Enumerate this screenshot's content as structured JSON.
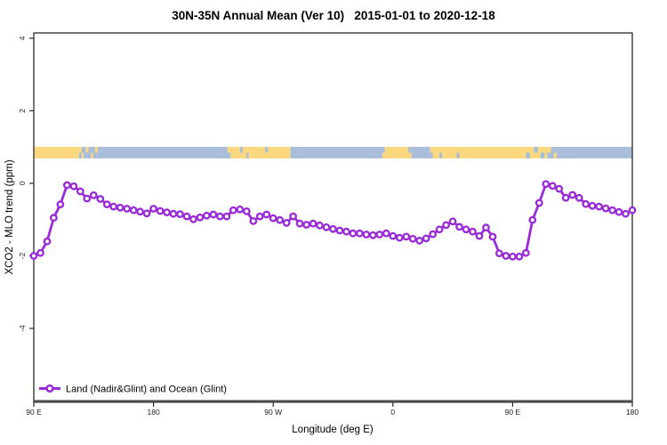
{
  "title": "30N-35N Annual Mean (Ver 10)   2015-01-01 to 2020-12-18",
  "x_axis": {
    "label": "Longitude (deg E)",
    "tick_labels": [
      "90 E",
      "180",
      "90 W",
      "0",
      "90 E",
      "180"
    ],
    "tick_positions_deg": [
      0,
      90,
      180,
      270,
      360,
      450
    ]
  },
  "y_axis": {
    "label": "XCO2 - MLO trend (ppm)",
    "tick_labels": [
      "4",
      "2",
      "0",
      "-2",
      "-4"
    ],
    "tick_values": [
      4,
      2,
      0,
      -2,
      -4
    ]
  },
  "legend": {
    "label": "Land (Nadir&Glint) and Ocean (Glint)"
  },
  "colors": {
    "series": "#9A2CD8",
    "marker_fill": "#ffffff",
    "land": "#FBD77E",
    "ocean": "#A9BEDB",
    "axis": "#2b2b2b",
    "axis_thick": "#4d4d4d",
    "tick_text": "#222222"
  },
  "chart_data": {
    "type": "line",
    "title": "30N-35N Annual Mean (Ver 10)   2015-01-01 to 2020-12-18",
    "xlabel": "Longitude (deg E)",
    "ylabel": "XCO2 - MLO trend (ppm)",
    "x_axis_span_deg": 450,
    "x_start_longitude": "90 E (axis wraps east through 180, 90 W, 0, 90 E to 180)",
    "x_step_deg": 5,
    "x_start_deg": 0,
    "ylim_visible": [
      -6.0,
      4.15
    ],
    "y_ticks": [
      4,
      2,
      0,
      -2,
      -4
    ],
    "grid": false,
    "legend_position": "bottom-left inside plot",
    "series": [
      {
        "name": "Land (Nadir&Glint) and Ocean (Glint)",
        "marker": "open-circle",
        "color": "#9A2CD8",
        "values": [
          -2.0,
          -1.92,
          -1.6,
          -0.95,
          -0.58,
          -0.05,
          -0.08,
          -0.22,
          -0.42,
          -0.33,
          -0.43,
          -0.58,
          -0.64,
          -0.67,
          -0.7,
          -0.74,
          -0.78,
          -0.83,
          -0.7,
          -0.76,
          -0.8,
          -0.84,
          -0.85,
          -0.91,
          -0.99,
          -0.94,
          -0.89,
          -0.86,
          -0.91,
          -0.91,
          -0.74,
          -0.72,
          -0.77,
          -1.04,
          -0.91,
          -0.86,
          -0.96,
          -1.01,
          -1.09,
          -0.91,
          -1.11,
          -1.14,
          -1.11,
          -1.16,
          -1.21,
          -1.26,
          -1.3,
          -1.33,
          -1.38,
          -1.38,
          -1.41,
          -1.43,
          -1.41,
          -1.38,
          -1.45,
          -1.5,
          -1.47,
          -1.53,
          -1.58,
          -1.52,
          -1.4,
          -1.27,
          -1.15,
          -1.05,
          -1.2,
          -1.27,
          -1.33,
          -1.45,
          -1.22,
          -1.47,
          -1.93,
          -2.0,
          -2.02,
          -2.02,
          -1.92,
          -1.01,
          -0.54,
          -0.02,
          -0.07,
          -0.15,
          -0.4,
          -0.32,
          -0.4,
          -0.57,
          -0.62,
          -0.64,
          -0.69,
          -0.74,
          -0.79,
          -0.84,
          -0.74
        ]
      }
    ],
    "land_ocean_strip": {
      "center_value_ppm": 0.85,
      "height_ppm": 0.32,
      "segments": [
        {
          "start_deg": 0,
          "end_deg": 34,
          "type": "land"
        },
        {
          "start_deg": 34,
          "end_deg": 148,
          "type": "ocean"
        },
        {
          "start_deg": 148,
          "end_deg": 193,
          "type": "land"
        },
        {
          "start_deg": 193,
          "end_deg": 264,
          "type": "ocean"
        },
        {
          "start_deg": 264,
          "end_deg": 284,
          "type": "land"
        },
        {
          "start_deg": 284,
          "end_deg": 298,
          "type": "ocean"
        },
        {
          "start_deg": 298,
          "end_deg": 386,
          "type": "land"
        },
        {
          "start_deg": 386,
          "end_deg": 450,
          "type": "ocean"
        }
      ],
      "coastline_jags": [
        {
          "d0": 34,
          "d1": 36,
          "type": "land",
          "half": "top"
        },
        {
          "d0": 36,
          "d1": 37.5,
          "type": "land",
          "half": "bottom"
        },
        {
          "d0": 39,
          "d1": 41,
          "type": "land",
          "half": "top"
        },
        {
          "d0": 43,
          "d1": 44.5,
          "type": "land",
          "half": "bottom"
        },
        {
          "d0": 46,
          "d1": 48,
          "type": "land",
          "half": "top"
        },
        {
          "d0": 145.5,
          "d1": 148,
          "type": "land",
          "half": "top"
        },
        {
          "d0": 155,
          "d1": 157,
          "type": "ocean",
          "half": "top"
        },
        {
          "d0": 160,
          "d1": 161.5,
          "type": "ocean",
          "half": "bottom"
        },
        {
          "d0": 174,
          "d1": 176,
          "type": "ocean",
          "half": "top"
        },
        {
          "d0": 262,
          "d1": 264,
          "type": "land",
          "half": "bottom"
        },
        {
          "d0": 281.5,
          "d1": 284,
          "type": "ocean",
          "half": "top"
        },
        {
          "d0": 298,
          "d1": 300,
          "type": "ocean",
          "half": "bottom"
        },
        {
          "d0": 305,
          "d1": 307,
          "type": "ocean",
          "half": "bottom"
        },
        {
          "d0": 318,
          "d1": 320,
          "type": "ocean",
          "half": "bottom"
        },
        {
          "d0": 370,
          "d1": 373,
          "type": "ocean",
          "half": "bottom"
        },
        {
          "d0": 376,
          "d1": 379,
          "type": "ocean",
          "half": "top"
        },
        {
          "d0": 381,
          "d1": 384,
          "type": "ocean",
          "half": "bottom"
        },
        {
          "d0": 386,
          "d1": 389,
          "type": "land",
          "half": "top"
        },
        {
          "d0": 391,
          "d1": 393,
          "type": "land",
          "half": "bottom"
        }
      ]
    }
  }
}
